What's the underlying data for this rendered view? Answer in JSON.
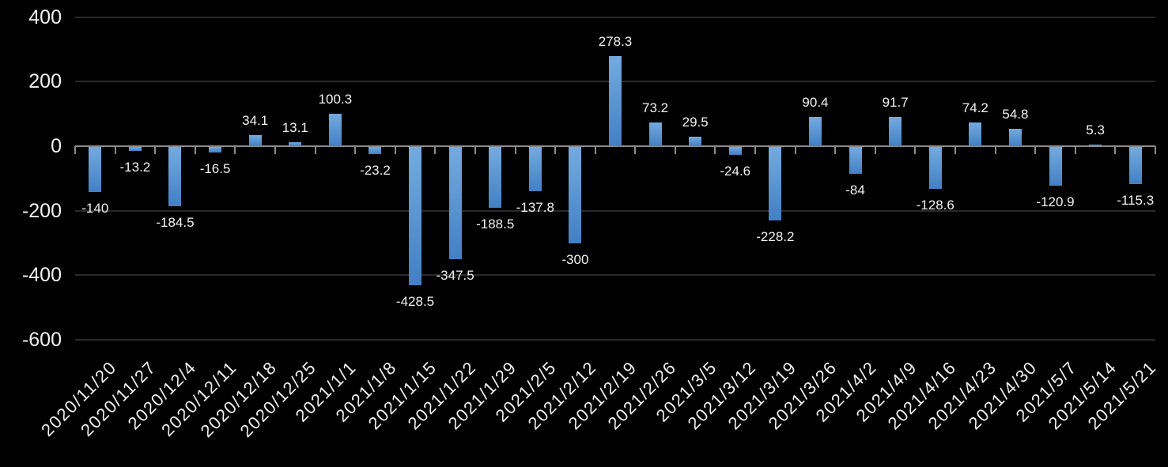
{
  "chart": {
    "background_color": "#000000",
    "axis_color": "#8c8c8c",
    "gridline_color": "#2a2a2a",
    "text_color": "#f2f2f2",
    "bar_gradient_top": "#74aadf",
    "bar_gradient_bottom": "#4280c4"
  },
  "chart_data": {
    "type": "bar",
    "title": "",
    "xlabel": "",
    "ylabel": "",
    "categories": [
      "2020/11/20",
      "2020/11/27",
      "2020/12/4",
      "2020/12/11",
      "2020/12/18",
      "2020/12/25",
      "2021/1/1",
      "2021/1/8",
      "2021/1/15",
      "2021/1/22",
      "2021/1/29",
      "2021/2/5",
      "2021/2/12",
      "2021/2/19",
      "2021/2/26",
      "2021/3/5",
      "2021/3/12",
      "2021/3/19",
      "2021/3/26",
      "2021/4/2",
      "2021/4/9",
      "2021/4/16",
      "2021/4/23",
      "2021/4/30",
      "2021/5/7",
      "2021/5/14",
      "2021/5/21"
    ],
    "values": [
      -140,
      -13.2,
      -184.5,
      -16.5,
      34.1,
      13.1,
      100.3,
      -23.2,
      -428.5,
      -347.5,
      -188.5,
      -137.8,
      -300,
      278.3,
      73.2,
      29.5,
      -24.6,
      -228.2,
      90.4,
      -84,
      91.7,
      -128.6,
      74.2,
      54.8,
      -120.9,
      5.3,
      -115.3
    ],
    "ylim": [
      -600,
      400
    ],
    "yticks": [
      400,
      200,
      0,
      -200,
      -400,
      -600
    ],
    "grid": true,
    "legend_position": "none",
    "data_labels": "outside-end",
    "x_tick_rotation_deg": 45
  }
}
